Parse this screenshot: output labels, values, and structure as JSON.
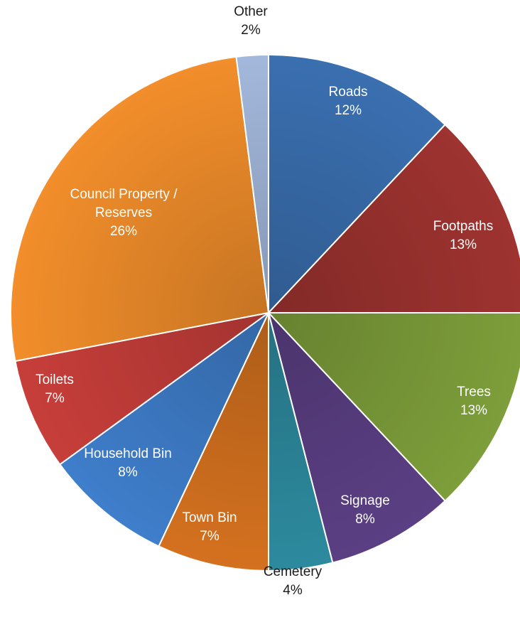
{
  "chart_data": {
    "type": "pie",
    "slices": [
      {
        "label_lines": [
          "Roads"
        ],
        "percent_label": "12%",
        "value": 12,
        "color": "#3a6fb0"
      },
      {
        "label_lines": [
          "Footpaths"
        ],
        "percent_label": "13%",
        "value": 13,
        "color": "#9e3330"
      },
      {
        "label_lines": [
          "Trees"
        ],
        "percent_label": "13%",
        "value": 13,
        "color": "#7d9e3a"
      },
      {
        "label_lines": [
          "Signage"
        ],
        "percent_label": "8%",
        "value": 8,
        "color": "#5b3f84"
      },
      {
        "label_lines": [
          "Cemetery"
        ],
        "percent_label": "4%",
        "value": 4,
        "color": "#2d8a9e"
      },
      {
        "label_lines": [
          "Town Bin"
        ],
        "percent_label": "7%",
        "value": 7,
        "color": "#d4711f"
      },
      {
        "label_lines": [
          "Household Bin"
        ],
        "percent_label": "8%",
        "value": 8,
        "color": "#3f7ecb"
      },
      {
        "label_lines": [
          "Toilets"
        ],
        "percent_label": "7%",
        "value": 7,
        "color": "#c73e3a"
      },
      {
        "label_lines": [
          "Council Property /",
          "Reserves"
        ],
        "percent_label": "26%",
        "value": 26,
        "color": "#f28e2b"
      },
      {
        "label_lines": [
          "Other"
        ],
        "percent_label": "2%",
        "value": 2,
        "color": "#a3b8dc"
      }
    ]
  }
}
